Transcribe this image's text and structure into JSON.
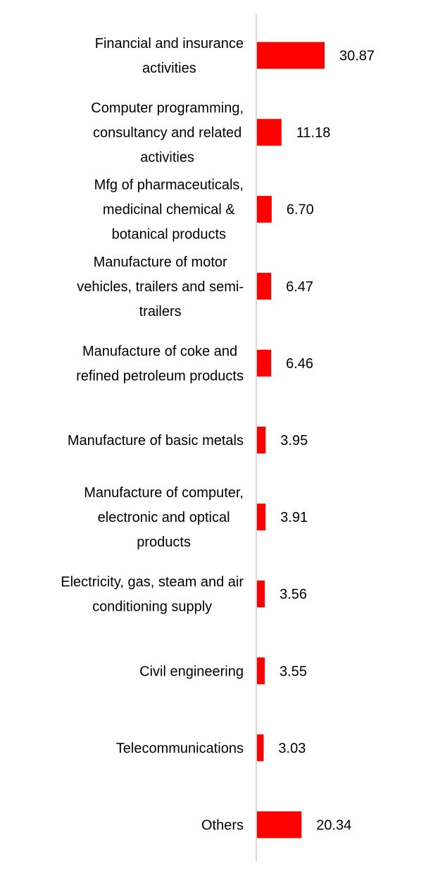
{
  "chart_data": {
    "type": "bar",
    "orientation": "horizontal",
    "title": "",
    "xlabel": "",
    "ylabel": "",
    "xlim": [
      0,
      45
    ],
    "grid": false,
    "legend": "none",
    "bar_color": "#ff0000",
    "axis_color": "#d9d9d9",
    "categories": [
      [
        "Financial and insurance",
        "activities"
      ],
      [
        "Computer programming,",
        "consultancy and related",
        "activities"
      ],
      [
        "Mfg of pharmaceuticals,",
        "medicinal chemical &",
        "botanical products"
      ],
      [
        "Manufacture of motor",
        "vehicles, trailers and semi-",
        "trailers"
      ],
      [
        "Manufacture of coke and",
        "refined petroleum products"
      ],
      [
        "Manufacture of basic metals"
      ],
      [
        "Manufacture of computer,",
        "electronic and optical",
        "products"
      ],
      [
        "Electricity, gas, steam and air",
        "conditioning supply"
      ],
      [
        "Civil engineering"
      ],
      [
        "Telecommunications"
      ],
      [
        "Others"
      ]
    ],
    "values": [
      30.87,
      11.18,
      6.7,
      6.47,
      6.46,
      3.95,
      3.91,
      3.56,
      3.55,
      3.03,
      20.34
    ],
    "value_labels": [
      "30.87",
      "11.18",
      "6.70",
      "6.47",
      "6.46",
      "3.95",
      "3.91",
      "3.56",
      "3.55",
      "3.03",
      "20.34"
    ]
  }
}
